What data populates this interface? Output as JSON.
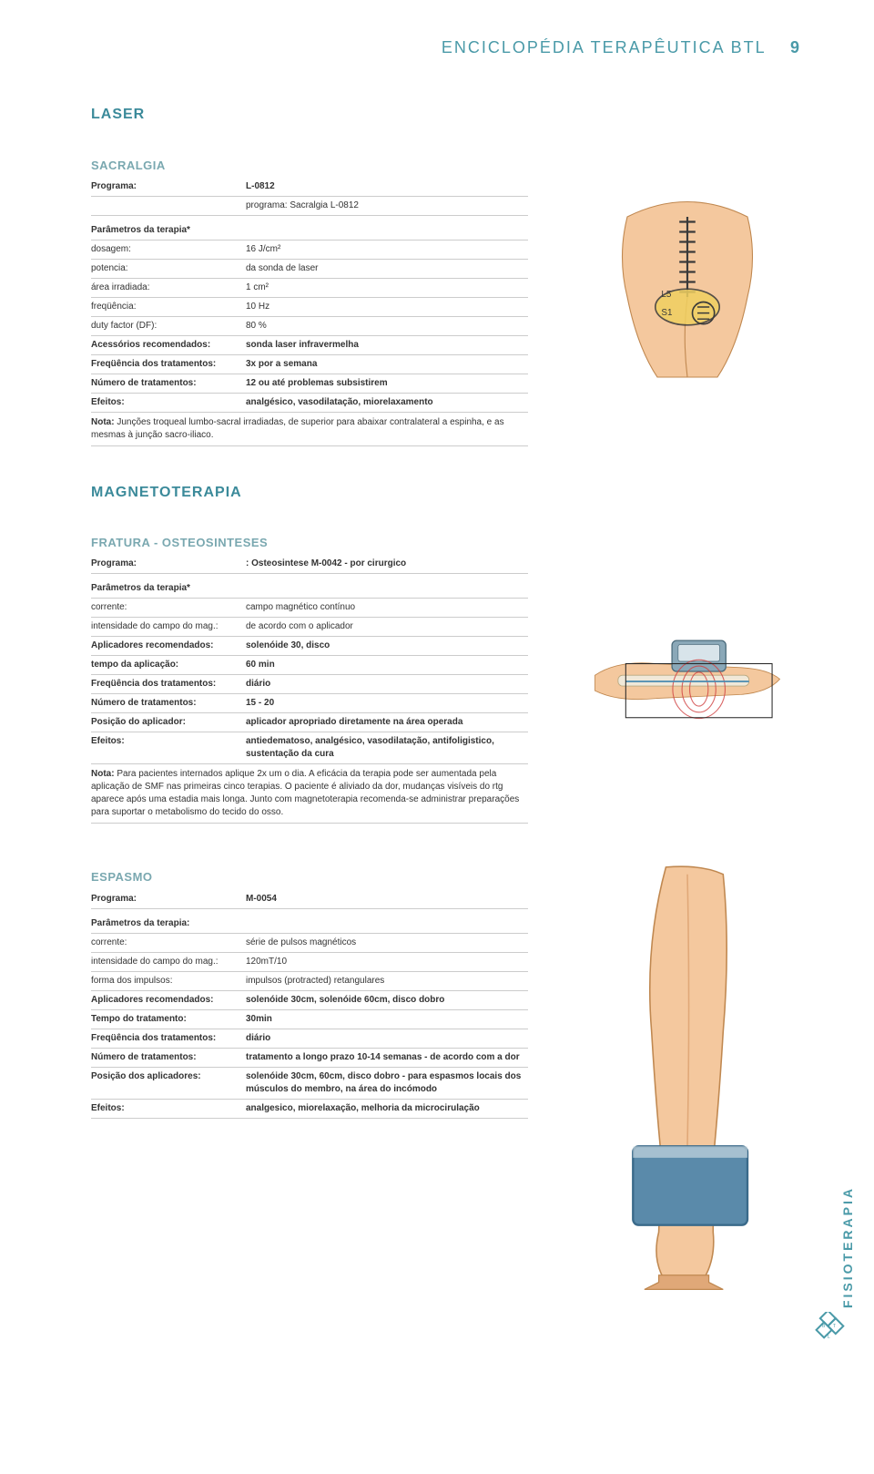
{
  "header": {
    "title": "ENCICLOPÉDIA TERAPÊUTICA BTL",
    "page_number": "9"
  },
  "laser": {
    "heading": "LASER",
    "subheading": "SACRALGIA",
    "rows": [
      {
        "label": "Programa:",
        "value": "L-0812",
        "bold": true
      },
      {
        "label": "",
        "value": "programa: Sacralgia L-0812"
      }
    ],
    "params_header": "Parâmetros da terapia*",
    "params": [
      {
        "label": "dosagem:",
        "value": "16 J/cm²"
      },
      {
        "label": "potencia:",
        "value": "da sonda de laser"
      },
      {
        "label": "área irradiada:",
        "value": "1 cm²"
      },
      {
        "label": "freqüência:",
        "value": "10 Hz"
      },
      {
        "label": "duty factor (DF):",
        "value": "80 %"
      },
      {
        "label": "Acessórios recomendados:",
        "value": "sonda laser infravermelha",
        "bold": true
      },
      {
        "label": "Freqüência dos tratamentos:",
        "value": "3x por a semana",
        "bold": true
      },
      {
        "label": "Número de tratamentos:",
        "value": "12 ou até problemas subsistirem",
        "bold": true
      },
      {
        "label": "Efeitos:",
        "value": "analgésico, vasodilatação, miorelaxamento",
        "bold": true
      }
    ],
    "note_label": "Nota:",
    "note": " Junções troqueal lumbo-sacral irradiadas, de superior para abaixar contralateral a espinha, e as mesmas à junção sacro-iliaco."
  },
  "magneto": {
    "heading": "MAGNETOTERAPIA",
    "subheading": "FRATURA - OSTEOSINTESES",
    "rows": [
      {
        "label": "Programa:",
        "value": ": Osteosintese M-0042 - por cirurgico",
        "bold": true
      }
    ],
    "params_header": "Parâmetros da terapia*",
    "params": [
      {
        "label": "corrente:",
        "value": "campo magnético contínuo"
      },
      {
        "label": "intensidade do campo do mag.:",
        "value": "de acordo com o aplicador"
      },
      {
        "label": "Aplicadores recomendados:",
        "value": "solenóide 30, disco",
        "bold": true
      },
      {
        "label": "tempo da aplicação:",
        "value": "60 min",
        "bold": true
      },
      {
        "label": "Freqüência dos tratamentos:",
        "value": "diário",
        "bold": true
      },
      {
        "label": "Número de tratamentos:",
        "value": "15 - 20",
        "bold": true
      },
      {
        "label": "Posição do aplicador:",
        "value": "aplicador apropriado diretamente na área operada",
        "bold": true
      },
      {
        "label": "Efeitos:",
        "value": "antiedematoso, analgésico, vasodilatação, antifoligistico, sustentação da cura",
        "bold": true
      }
    ],
    "note_label": "Nota:",
    "note": " Para pacientes internados aplique 2x um o dia. A eficácia da terapia pode ser aumentada pela aplicação de SMF nas primeiras cinco terapias. O paciente é aliviado da dor, mudanças visíveis do rtg aparece após uma estadia mais longa. Junto com magnetoterapia recomenda-se administrar preparações para suportar o metabolismo do tecido do osso."
  },
  "espasmo": {
    "subheading": "ESPASMO",
    "rows": [
      {
        "label": "Programa:",
        "value": "M-0054",
        "bold": true
      }
    ],
    "params_header": "Parâmetros da terapia:",
    "params": [
      {
        "label": "corrente:",
        "value": "série de pulsos magnéticos"
      },
      {
        "label": "intensidade do campo do mag.:",
        "value": "120mT/10"
      },
      {
        "label": "forma dos impulsos:",
        "value": "impulsos (protracted) retangulares"
      },
      {
        "label": "Aplicadores recomendados:",
        "value": "solenóide 30cm, solenóide 60cm, disco dobro",
        "bold": true
      },
      {
        "label": "Tempo do tratamento:",
        "value": "30min",
        "bold": true
      },
      {
        "label": "Freqüência dos tratamentos:",
        "value": "diário",
        "bold": true
      },
      {
        "label": "Número de tratamentos:",
        "value": "tratamento a longo prazo 10-14 semanas - de acordo com a dor",
        "bold": true
      },
      {
        "label": "Posição dos aplicadores:",
        "value": "solenóide 30cm, 60cm, disco dobro - para espasmos locais dos músculos do membro, na área do incómodo",
        "bold": true
      },
      {
        "label": "Efeitos:",
        "value": "analgesico, miorelaxação, melhoria da microcirulação",
        "bold": true
      }
    ]
  },
  "side_label": "FISIOTERAPIA",
  "colors": {
    "accent": "#4a9aa8",
    "rule": "#cccccc",
    "skin": "#f4c89e",
    "skin_shadow": "#e0a878",
    "bone": "#f0e8d8",
    "device": "#8aa8b8"
  },
  "illustrations": {
    "back": {
      "spine_marks": 8,
      "highlight_color": "#f0d060",
      "labels": [
        "L5",
        "S1"
      ]
    },
    "arm_coil": {
      "coil_color": "#d04040",
      "device_color": "#8aa8b8"
    },
    "leg_band": {
      "band_color": "#5a8aaa"
    }
  }
}
